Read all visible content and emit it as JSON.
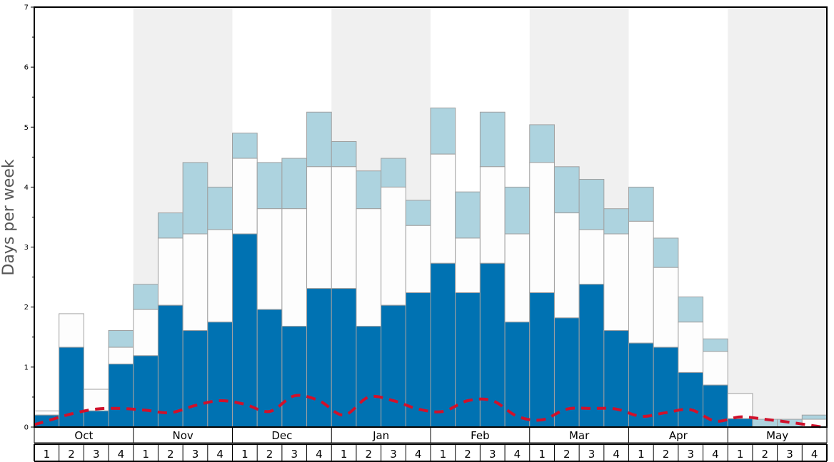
{
  "chart_data": {
    "type": "bar",
    "ylabel": "Days per week",
    "ylim": [
      0,
      7
    ],
    "yticks": [
      "0",
      "1",
      "2",
      "3",
      "4",
      "5",
      "6",
      "7"
    ],
    "months": [
      "Oct",
      "Nov",
      "Dec",
      "Jan",
      "Feb",
      "Mar",
      "Apr",
      "May"
    ],
    "week_labels": [
      "1",
      "2",
      "3",
      "4"
    ],
    "colors": {
      "base": "#0072b2",
      "middle": "#fdfdfd",
      "top": "#add3df",
      "line": "#d0112b",
      "shade": "#f0f0f0",
      "outline": "#a0a0a0"
    },
    "series": [
      {
        "values": [
          0.2,
          1.33,
          0.27,
          1.05,
          1.19,
          2.03,
          1.61,
          1.75,
          3.22,
          1.96,
          1.68,
          2.31,
          2.31,
          1.68,
          2.03,
          2.24,
          2.73,
          2.24,
          2.73,
          1.75,
          2.24,
          1.82,
          2.38,
          1.61,
          1.4,
          1.33,
          0.91,
          0.7,
          0.14,
          0.0,
          0.0,
          0.0
        ]
      },
      {
        "values": [
          0.27,
          1.89,
          0.63,
          1.33,
          1.96,
          3.15,
          3.22,
          3.29,
          4.48,
          3.64,
          3.64,
          4.34,
          4.34,
          3.64,
          4.0,
          3.36,
          4.55,
          3.15,
          4.34,
          3.22,
          4.41,
          3.57,
          3.29,
          3.22,
          3.43,
          2.66,
          1.75,
          1.26,
          0.56,
          0.0,
          0.0,
          0.13
        ]
      },
      {
        "values": [
          0.27,
          1.89,
          0.63,
          1.61,
          2.38,
          3.57,
          4.41,
          4.0,
          4.9,
          4.41,
          4.48,
          5.25,
          4.76,
          4.27,
          4.48,
          3.78,
          5.32,
          3.92,
          5.25,
          4.0,
          5.04,
          4.34,
          4.13,
          3.64,
          4.0,
          3.15,
          2.17,
          1.47,
          0.56,
          0.13,
          0.13,
          0.2
        ]
      },
      {
        "values": [
          0.1,
          0.22,
          0.3,
          0.31,
          0.28,
          0.24,
          0.36,
          0.44,
          0.38,
          0.26,
          0.52,
          0.44,
          0.2,
          0.5,
          0.44,
          0.3,
          0.26,
          0.44,
          0.44,
          0.18,
          0.12,
          0.3,
          0.31,
          0.3,
          0.18,
          0.24,
          0.29,
          0.1,
          0.17,
          0.13,
          0.08,
          0.02
        ]
      }
    ]
  }
}
